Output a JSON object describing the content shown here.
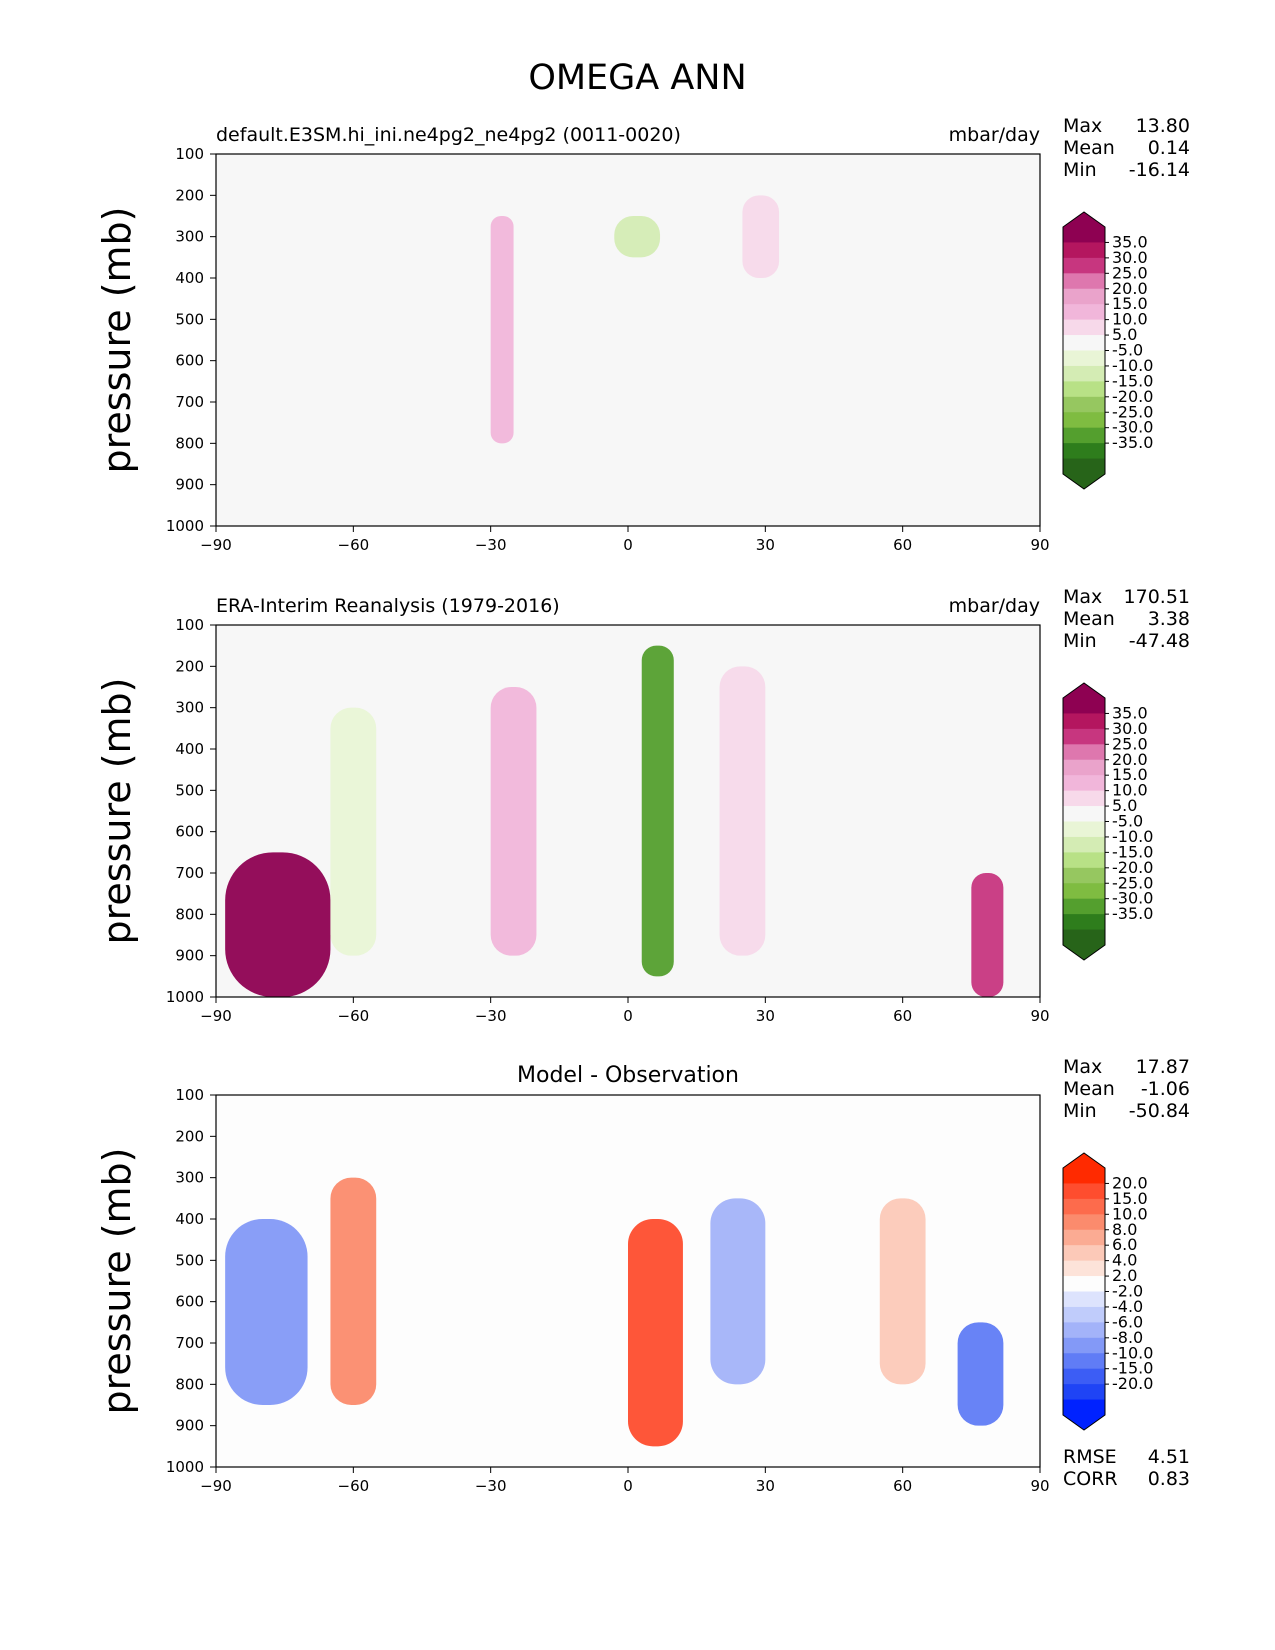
{
  "figure": {
    "title": "OMEGA ANN"
  },
  "chart_data": [
    {
      "type": "heatmap",
      "panel": "model",
      "title": "default.E3SM.hi_ini.ne4pg2_ne4pg2 (0011-0020)",
      "units": "mbar/day",
      "ylabel": "pressure (mb)",
      "x_ticks": [
        -90,
        -60,
        -30,
        0,
        30,
        60,
        90
      ],
      "y_ticks": [
        100,
        200,
        300,
        400,
        500,
        600,
        700,
        800,
        900,
        1000
      ],
      "xlim": [
        -90,
        90
      ],
      "ylim": [
        1000,
        100
      ],
      "stats": [
        {
          "label": "Max",
          "value": "13.80"
        },
        {
          "label": "Mean",
          "value": "0.14"
        },
        {
          "label": "Min",
          "value": "-16.14"
        }
      ],
      "colorbar": {
        "labels": [
          "35.0",
          "30.0",
          "25.0",
          "20.0",
          "15.0",
          "10.0",
          "5.0",
          "-5.0",
          "-10.0",
          "-15.0",
          "-20.0",
          "-25.0",
          "-30.0",
          "-35.0"
        ],
        "colors": [
          "#8e0152",
          "#b4165f",
          "#c7367f",
          "#de77ae",
          "#eaa3cb",
          "#f1b6da",
          "#f7d9ea",
          "#f7f7f7",
          "#e9f5d6",
          "#d4ecb4",
          "#b8e186",
          "#96c760",
          "#7fbc41",
          "#549f2e",
          "#2e7d1c",
          "#276419"
        ]
      },
      "regions": [
        {
          "x": [
            -30,
            -25
          ],
          "p": [
            250,
            800
          ],
          "value": 10
        },
        {
          "x": [
            -3,
            7
          ],
          "p": [
            250,
            350
          ],
          "value": -12
        },
        {
          "x": [
            25,
            33
          ],
          "p": [
            200,
            400
          ],
          "value": 6
        }
      ]
    },
    {
      "type": "heatmap",
      "panel": "observation",
      "title": "ERA-Interim Reanalysis (1979-2016)",
      "units": "mbar/day",
      "ylabel": "pressure (mb)",
      "x_ticks": [
        -90,
        -60,
        -30,
        0,
        30,
        60,
        90
      ],
      "y_ticks": [
        100,
        200,
        300,
        400,
        500,
        600,
        700,
        800,
        900,
        1000
      ],
      "xlim": [
        -90,
        90
      ],
      "ylim": [
        1000,
        100
      ],
      "stats": [
        {
          "label": "Max",
          "value": "170.51"
        },
        {
          "label": "Mean",
          "value": "3.38"
        },
        {
          "label": "Min",
          "value": "-47.48"
        }
      ],
      "colorbar": {
        "labels": [
          "35.0",
          "30.0",
          "25.0",
          "20.0",
          "15.0",
          "10.0",
          "5.0",
          "-5.0",
          "-10.0",
          "-15.0",
          "-20.0",
          "-25.0",
          "-30.0",
          "-35.0"
        ],
        "colors": [
          "#8e0152",
          "#b4165f",
          "#c7367f",
          "#de77ae",
          "#eaa3cb",
          "#f1b6da",
          "#f7d9ea",
          "#f7f7f7",
          "#e9f5d6",
          "#d4ecb4",
          "#b8e186",
          "#96c760",
          "#7fbc41",
          "#549f2e",
          "#2e7d1c",
          "#276419"
        ]
      },
      "regions": [
        {
          "x": [
            -88,
            -65
          ],
          "p": [
            650,
            1000
          ],
          "value": 40
        },
        {
          "x": [
            -65,
            -55
          ],
          "p": [
            300,
            900
          ],
          "value": -10
        },
        {
          "x": [
            -30,
            -20
          ],
          "p": [
            250,
            900
          ],
          "value": 10
        },
        {
          "x": [
            3,
            10
          ],
          "p": [
            150,
            950
          ],
          "value": -35
        },
        {
          "x": [
            20,
            30
          ],
          "p": [
            200,
            900
          ],
          "value": 8
        },
        {
          "x": [
            75,
            82
          ],
          "p": [
            700,
            1000
          ],
          "value": 25
        }
      ]
    },
    {
      "type": "heatmap",
      "panel": "difference",
      "title": "Model - Observation",
      "units": "",
      "ylabel": "pressure (mb)",
      "x_ticks": [
        -90,
        -60,
        -30,
        0,
        30,
        60,
        90
      ],
      "y_ticks": [
        100,
        200,
        300,
        400,
        500,
        600,
        700,
        800,
        900,
        1000
      ],
      "xlim": [
        -90,
        90
      ],
      "ylim": [
        1000,
        100
      ],
      "stats": [
        {
          "label": "Max",
          "value": "17.87"
        },
        {
          "label": "Mean",
          "value": "-1.06"
        },
        {
          "label": "Min",
          "value": "-50.84"
        }
      ],
      "extra_stats": [
        {
          "label": "RMSE",
          "value": "4.51"
        },
        {
          "label": "CORR",
          "value": "0.83"
        }
      ],
      "colorbar": {
        "labels": [
          "20.0",
          "15.0",
          "10.0",
          "8.0",
          "6.0",
          "4.0",
          "2.0",
          "-2.0",
          "-4.0",
          "-6.0",
          "-8.0",
          "-10.0",
          "-15.0",
          "-20.0"
        ],
        "colors": [
          "#ff2a00",
          "#fe4d2e",
          "#fd6b4c",
          "#fb8b6d",
          "#fbab93",
          "#fcc9b8",
          "#fde3d9",
          "#fdfdfd",
          "#dde3fd",
          "#c0ccfb",
          "#a3b3f9",
          "#8399f7",
          "#607cf6",
          "#3c5df5",
          "#1f44f5",
          "#0022ff"
        ]
      },
      "regions": [
        {
          "x": [
            -88,
            -70
          ],
          "p": [
            400,
            850
          ],
          "value": -10
        },
        {
          "x": [
            -65,
            -55
          ],
          "p": [
            300,
            850
          ],
          "value": 8
        },
        {
          "x": [
            0,
            12
          ],
          "p": [
            400,
            950
          ],
          "value": 15
        },
        {
          "x": [
            18,
            30
          ],
          "p": [
            350,
            800
          ],
          "value": -8
        },
        {
          "x": [
            55,
            65
          ],
          "p": [
            350,
            800
          ],
          "value": 5
        },
        {
          "x": [
            72,
            82
          ],
          "p": [
            650,
            900
          ],
          "value": -12
        }
      ]
    }
  ]
}
